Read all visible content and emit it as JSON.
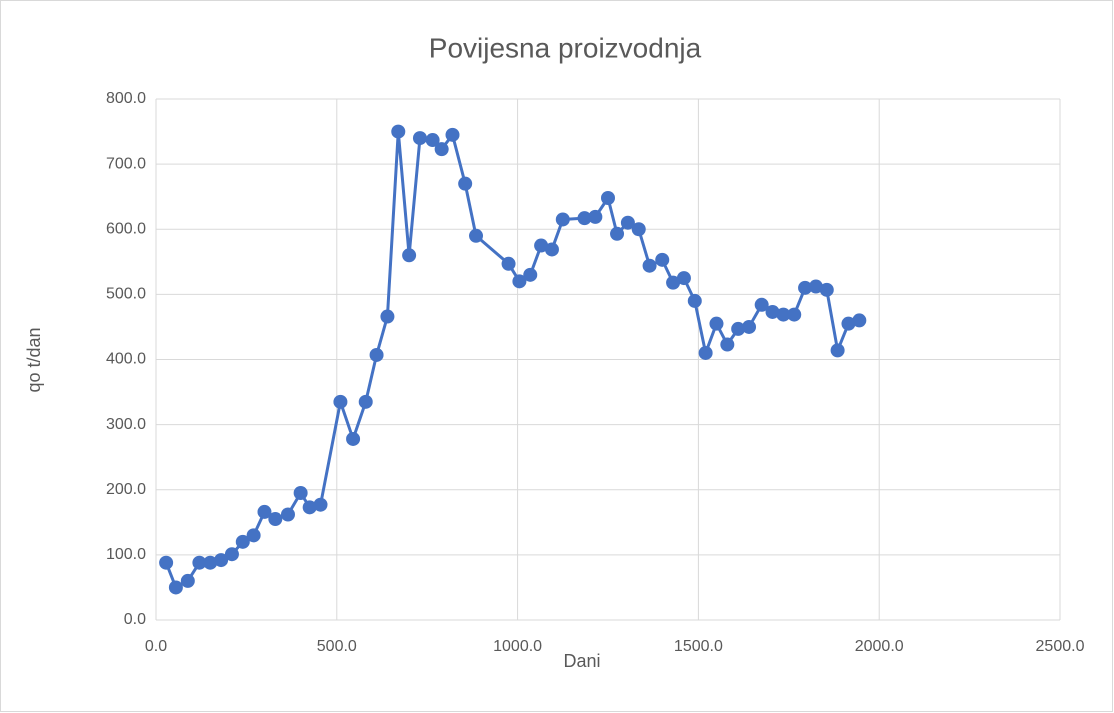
{
  "chart_data": {
    "type": "line",
    "title": "Povijesna proizvodnja",
    "x_label": "Dani",
    "y_label": "qo t/dan",
    "x": [
      28,
      55,
      88,
      120,
      150,
      180,
      210,
      240,
      270,
      300,
      330,
      365,
      400,
      425,
      455,
      510,
      545,
      580,
      610,
      640,
      670,
      700,
      730,
      765,
      790,
      820,
      855,
      885,
      975,
      1005,
      1035,
      1065,
      1095,
      1125,
      1185,
      1215,
      1250,
      1275,
      1305,
      1335,
      1365,
      1400,
      1430,
      1460,
      1490,
      1520,
      1550,
      1580,
      1610,
      1640,
      1675,
      1705,
      1735,
      1765,
      1795,
      1825,
      1855,
      1885,
      1915,
      1945
    ],
    "series": [
      {
        "name": "qo",
        "color": "#4472c4",
        "values": [
          88,
          50,
          60,
          88,
          88,
          92,
          101,
          120,
          130,
          166,
          155,
          162,
          195,
          173,
          177,
          335,
          278,
          335,
          407,
          466,
          750,
          560,
          740,
          737,
          723,
          745,
          670,
          590,
          547,
          520,
          530,
          575,
          569,
          615,
          617,
          619,
          648,
          593,
          610,
          600,
          544,
          553,
          518,
          525,
          490,
          410,
          455,
          423,
          447,
          450,
          484,
          473,
          469,
          469,
          510,
          512,
          507,
          414,
          455,
          460
        ]
      }
    ],
    "xlim": [
      0,
      2500
    ],
    "xticks": [
      {
        "value": 0,
        "label": "0.0"
      },
      {
        "value": 500,
        "label": "500.0"
      },
      {
        "value": 1000,
        "label": "1000.0"
      },
      {
        "value": 1500,
        "label": "1500.0"
      },
      {
        "value": 2000,
        "label": "2000.0"
      },
      {
        "value": 2500,
        "label": "2500.0"
      }
    ],
    "ylim": [
      0,
      800
    ],
    "yticks": [
      {
        "value": 0,
        "label": "0.0"
      },
      {
        "value": 100,
        "label": "100.0"
      },
      {
        "value": 200,
        "label": "200.0"
      },
      {
        "value": 300,
        "label": "300.0"
      },
      {
        "value": 400,
        "label": "400.0"
      },
      {
        "value": 500,
        "label": "500.0"
      },
      {
        "value": 600,
        "label": "600.0"
      },
      {
        "value": 700,
        "label": "700.0"
      },
      {
        "value": 800,
        "label": "800.0"
      }
    ],
    "grid": true
  }
}
